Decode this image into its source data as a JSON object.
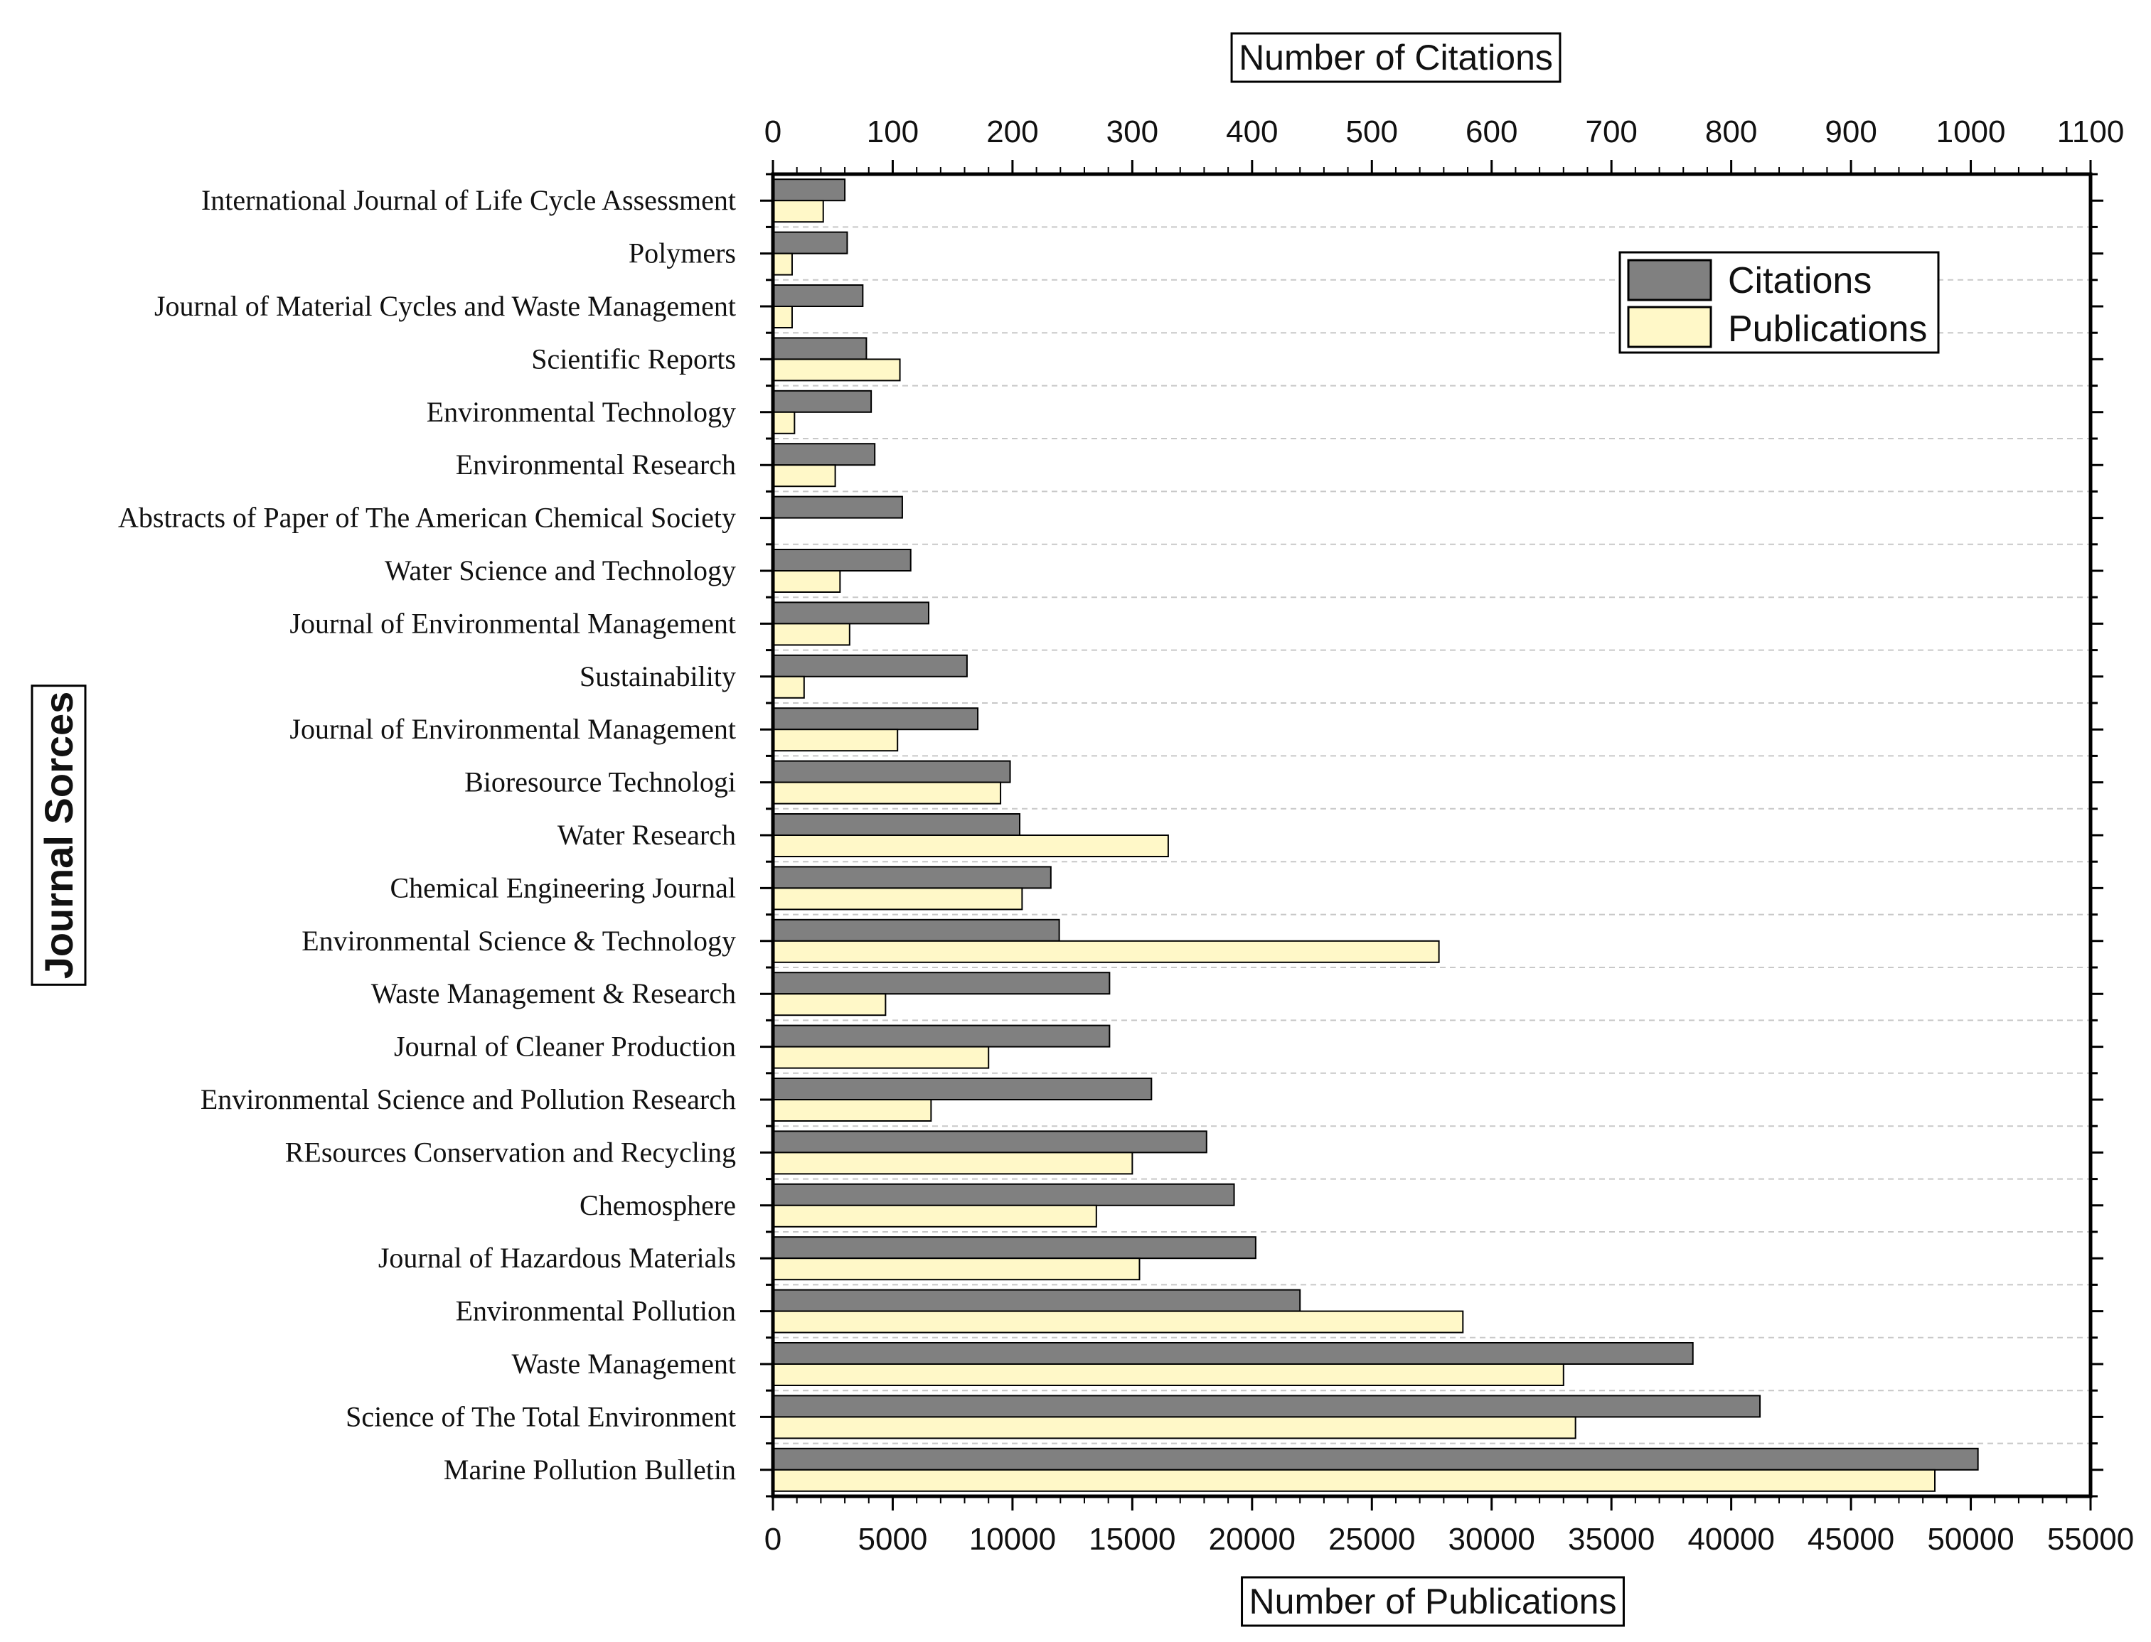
{
  "chart_data": {
    "type": "bar",
    "orientation": "horizontal",
    "categories": [
      "International Journal of Life Cycle Assessment",
      "Polymers",
      "Journal of Material Cycles and Waste Management",
      "Scientific Reports",
      "Environmental Technology",
      "Environmental Research",
      "Abstracts of Paper of The American Chemical Society",
      "Water Science and Technology",
      "Journal of Environmental Management",
      "Sustainability",
      "Journal of Environmental Management",
      "Bioresource Technologi",
      "Water Research",
      "Chemical Engineering Journal",
      "Environmental Science & Technology",
      "Waste Management & Research",
      "Journal of Cleaner Production",
      "Environmental Science and Pollution Research",
      "REsources Conservation and Recycling",
      "Chemosphere",
      "Journal of Hazardous Materials",
      "Environmental Pollution",
      "Waste Management",
      "Science of The Total Environment",
      "Marine Pollution Bulletin"
    ],
    "series": [
      {
        "name": "Citations",
        "axis": "top",
        "color": "#808080",
        "values": [
          60,
          62,
          75,
          78,
          82,
          85,
          108,
          115,
          130,
          162,
          171,
          198,
          206,
          232,
          239,
          281,
          281,
          316,
          362,
          385,
          403,
          440,
          768,
          824,
          1006
        ]
      },
      {
        "name": "Publications",
        "axis": "bottom",
        "color": "#FFF8C8",
        "values": [
          2100,
          800,
          800,
          5300,
          900,
          2600,
          0,
          2800,
          3200,
          1300,
          5200,
          9500,
          16500,
          10400,
          27800,
          4700,
          9000,
          6600,
          15000,
          13500,
          15300,
          28800,
          33000,
          33500,
          48500
        ]
      }
    ],
    "x_top": {
      "title": "Number of Citations",
      "range": [
        0,
        1100
      ],
      "ticks": [
        0,
        100,
        200,
        300,
        400,
        500,
        600,
        700,
        800,
        900,
        1000,
        1100
      ]
    },
    "x_bottom": {
      "title": "Number of Publications",
      "range": [
        0,
        55000
      ],
      "ticks": [
        0,
        5000,
        10000,
        15000,
        20000,
        25000,
        30000,
        35000,
        40000,
        45000,
        50000,
        55000
      ]
    },
    "ylabel": "Journal Sorces",
    "legend_position": "top-right",
    "grid": "horizontal dashed"
  }
}
